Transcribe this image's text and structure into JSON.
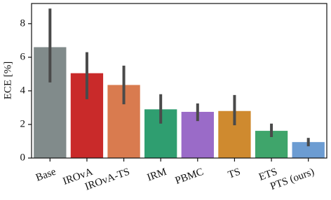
{
  "chart_data": {
    "type": "bar",
    "y_label": "ECE [%]",
    "categories": [
      "Base",
      "IROvA",
      "IROvA-TS",
      "IRM",
      "PBMC",
      "TS",
      "ETS",
      "PTS (ours)"
    ],
    "values": [
      6.6,
      5.05,
      4.35,
      2.9,
      2.75,
      2.8,
      1.62,
      0.95
    ],
    "ci_low": [
      4.5,
      3.5,
      3.2,
      2.05,
      2.2,
      1.95,
      1.25,
      0.7
    ],
    "ci_high": [
      8.9,
      6.3,
      5.5,
      3.8,
      3.25,
      3.75,
      2.05,
      1.2
    ],
    "colors": [
      "#818b8b",
      "#c92a2a",
      "#d97b4f",
      "#2f9e70",
      "#9a6bc8",
      "#cf8a2f",
      "#3fa56b",
      "#6c9cd2"
    ],
    "error_color": "#4a4a4a",
    "ylim": [
      0,
      9.2
    ],
    "yticks": [
      0,
      2,
      4,
      6,
      8
    ]
  }
}
